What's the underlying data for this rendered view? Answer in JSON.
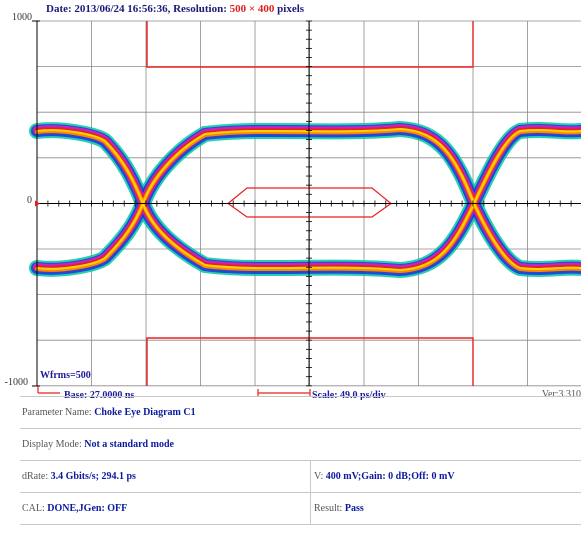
{
  "header": {
    "prefix": "Date: 2013/06/24 16:56:36, Resolution: ",
    "resolution": "500 × 400",
    "suffix": " pixels"
  },
  "scope": {
    "y_top_label": "1000",
    "y_mid_label": "0",
    "y_bottom_label": "-1000",
    "wfms_label": "Wfrms=500",
    "base_label": "Base: 27.0000 ns",
    "scale_label": "Scale: 49.0 ps/div",
    "version_label": "Ver:3.310",
    "colors": {
      "grid": "#8a8a8a",
      "mask": "#e8201e",
      "trace_outer": "#00c8a0",
      "trace_blue": "#2030e0",
      "trace_red": "#e82020",
      "trace_orange": "#ff9a00",
      "trace_yellow": "#ffe000",
      "trace_magenta": "#e020c0"
    }
  },
  "params": {
    "parameter_name_label": "Parameter Name:",
    "parameter_name_value": "Choke Eye Diagram C1",
    "display_mode_label": "Display Mode:",
    "display_mode_value": "Not a standard mode",
    "drate_label": "dRate:",
    "drate_value": "3.4 Gbits/s; 294.1 ps",
    "v_label": "V:",
    "v_value": "400 mV;Gain: 0 dB;Off: 0 mV",
    "cal_label": "CAL:",
    "cal_value": "DONE,JGen: OFF",
    "result_label": "Result:",
    "result_value": "Pass"
  }
}
